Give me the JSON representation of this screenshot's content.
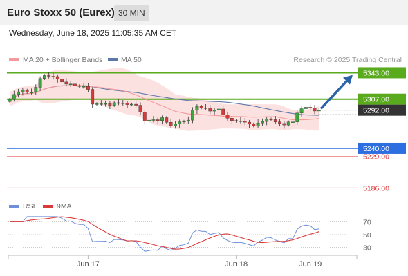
{
  "header": {
    "title": "Euro Stoxx 50 (Eurex)",
    "timeframe": "30 MIN"
  },
  "datetime": "Wednesday, June 18, 2025 11:05:35 AM CET",
  "copyright": "Research © 2025 Trading Central",
  "colors": {
    "up": "#3aa83a",
    "down": "#d93b3b",
    "resistance": "#5aaa1e",
    "support": "#2d6fe0",
    "weak_level": "#f08c8c",
    "ma20": "#f59a9a",
    "ma50": "#5d78a8",
    "bollinger": "#fcdcdc",
    "arrow": "#2b63a8",
    "price_tag": "#333333",
    "rsi": "#6f8fd8",
    "rsi_ma": "#d93b3b"
  },
  "chart_data": [
    {
      "type": "candlestick",
      "title": "Euro Stoxx 50 (Eurex)",
      "legend": [
        {
          "name": "MA 20 + Bollinger Bands",
          "color": "#f59a9a"
        },
        {
          "name": "MA 50",
          "color": "#5d78a8"
        }
      ],
      "x_labels": [
        "Jun 17",
        "Jun 18",
        "Jun 19"
      ],
      "x_label_index": [
        18,
        52,
        69
      ],
      "ylim": [
        5176,
        5350
      ],
      "last_price": 5292.0,
      "levels": [
        {
          "value": 5343.0,
          "label": "5343.00",
          "kind": "resistance"
        },
        {
          "value": 5307.0,
          "label": "5307.00",
          "kind": "resistance"
        },
        {
          "value": 5292.0,
          "label": "5292.00",
          "kind": "price"
        },
        {
          "value": 5240.0,
          "label": "5240.00",
          "kind": "support"
        },
        {
          "value": 5229.0,
          "label": "5229.00",
          "kind": "weak"
        },
        {
          "value": 5186.0,
          "label": "5186.00",
          "kind": "weak"
        }
      ],
      "close": [
        5306.7,
        5313.4,
        5317.0,
        5319.1,
        5316.4,
        5316.4,
        5323.2,
        5335.1,
        5339.2,
        5338.2,
        5337.8,
        5334.5,
        5330.4,
        5327.5,
        5327.6,
        5325.3,
        5324.3,
        5324.4,
        5320.3,
        5300.2,
        5300.7,
        5300.7,
        5301.0,
        5298.5,
        5302.1,
        5301.8,
        5301.3,
        5299.6,
        5300.1,
        5298.7,
        5289.5,
        5277.3,
        5278.4,
        5279.0,
        5277.8,
        5281.8,
        5275.5,
        5270.9,
        5273.1,
        5276.1,
        5276.8,
        5278.4,
        5292.0,
        5297.2,
        5295.2,
        5295.1,
        5290.7,
        5292.4,
        5293.6,
        5285.8,
        5281.1,
        5277.8,
        5277.0,
        5277.3,
        5275.6,
        5273.0,
        5270.8,
        5274.6,
        5276.6,
        5279.8,
        5279.1,
        5276.0,
        5273.9,
        5271.8,
        5275.9,
        5276.0,
        5288.1,
        5294.0,
        5296.0,
        5295.1,
        5290.8,
        5292.0
      ],
      "rsi": {
        "ylim": [
          20,
          80
        ],
        "ticks": [
          70,
          50,
          30
        ],
        "legend": [
          {
            "name": "RSI",
            "color": "#6f8fd8"
          },
          {
            "name": "9MA",
            "color": "#d93b3b"
          }
        ]
      }
    }
  ]
}
